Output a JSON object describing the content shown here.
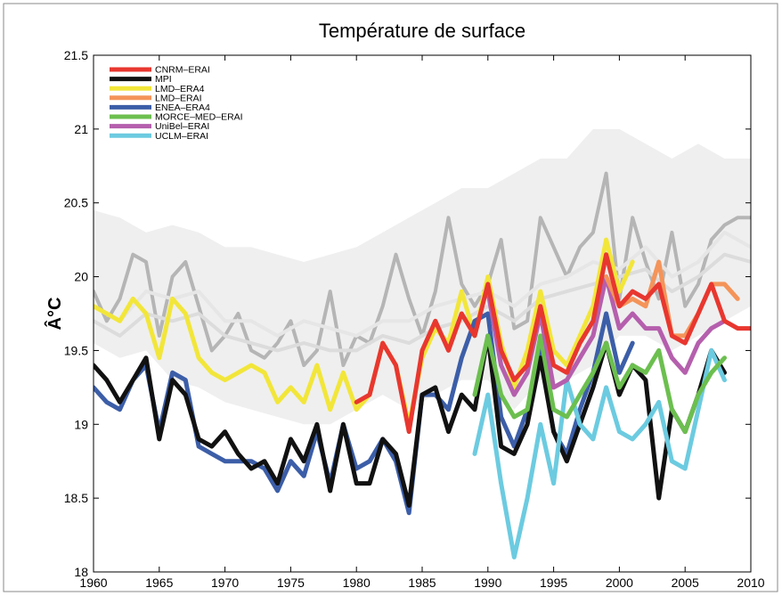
{
  "chart_data": {
    "type": "line",
    "title": "Température de surface",
    "xlabel": "",
    "ylabel": "Â°C",
    "xlim": [
      1960,
      2010
    ],
    "ylim": [
      18,
      21.5
    ],
    "xticks": [
      "1960",
      "1965",
      "1970",
      "1975",
      "1980",
      "1985",
      "1990",
      "1995",
      "2000",
      "2005",
      "2010"
    ],
    "yticks": [
      "18",
      "18.5",
      "19",
      "19.5",
      "20",
      "20.5",
      "21",
      "21.5"
    ],
    "grid": false,
    "legend": "top-left",
    "envelope": {
      "x": [
        1960,
        1962,
        1964,
        1966,
        1968,
        1970,
        1972,
        1974,
        1976,
        1978,
        1980,
        1982,
        1984,
        1986,
        1988,
        1990,
        1992,
        1994,
        1996,
        1998,
        2000,
        2002,
        2004,
        2006,
        2008,
        2010
      ],
      "low": [
        19.55,
        19.45,
        19.5,
        19.3,
        19.25,
        19.15,
        19.1,
        19.05,
        19.0,
        19.0,
        19.1,
        19.2,
        19.1,
        19.2,
        19.3,
        19.3,
        19.1,
        19.3,
        19.3,
        19.4,
        19.6,
        19.6,
        19.5,
        19.6,
        19.7,
        19.8
      ],
      "high": [
        20.45,
        20.4,
        20.3,
        20.35,
        20.3,
        20.2,
        20.2,
        20.15,
        20.1,
        20.15,
        20.2,
        20.3,
        20.4,
        20.5,
        20.6,
        20.6,
        20.7,
        20.8,
        20.8,
        21.0,
        21.0,
        20.9,
        20.8,
        20.9,
        20.8,
        20.8
      ]
    },
    "grey_series": [
      {
        "color": "#b5b5b5",
        "x": [
          1960,
          1961,
          1962,
          1963,
          1964,
          1965,
          1966,
          1967,
          1968,
          1969,
          1970,
          1971,
          1972,
          1973,
          1974,
          1975,
          1976,
          1977,
          1978,
          1979,
          1980,
          1981,
          1982,
          1983,
          1984,
          1985,
          1986,
          1987,
          1988,
          1989,
          1990,
          1991,
          1992,
          1993,
          1994,
          1995,
          1996,
          1997,
          1998,
          1999,
          2000,
          2001,
          2002,
          2003,
          2004,
          2005,
          2006,
          2007,
          2008,
          2009,
          2010
        ],
        "values": [
          19.9,
          19.7,
          19.85,
          20.15,
          20.1,
          19.6,
          20.0,
          20.1,
          19.8,
          19.5,
          19.6,
          19.75,
          19.5,
          19.45,
          19.55,
          19.7,
          19.4,
          19.5,
          19.9,
          19.4,
          19.6,
          19.55,
          19.8,
          20.15,
          19.85,
          19.6,
          19.9,
          20.4,
          19.95,
          19.8,
          19.95,
          20.25,
          19.65,
          19.7,
          20.4,
          20.2,
          20.0,
          20.2,
          20.3,
          20.7,
          19.85,
          20.4,
          20.1,
          19.85,
          20.3,
          19.8,
          19.95,
          20.25,
          20.35,
          20.4,
          20.4
        ]
      },
      {
        "color": "#e6e6e6",
        "x": [
          1960,
          1962,
          1964,
          1966,
          1968,
          1970,
          1972,
          1974,
          1976,
          1978,
          1980,
          1982,
          1984,
          1986,
          1988,
          1990,
          1992,
          1994,
          1996,
          1998,
          2000,
          2002,
          2004,
          2006,
          2008,
          2010
        ],
        "values": [
          19.8,
          19.7,
          19.9,
          19.85,
          19.9,
          19.7,
          19.7,
          19.6,
          19.7,
          19.65,
          19.6,
          19.7,
          19.7,
          19.8,
          19.85,
          19.9,
          19.8,
          19.95,
          20.0,
          20.1,
          20.05,
          20.2,
          20.0,
          20.1,
          20.3,
          20.2
        ]
      },
      {
        "color": "#dcdcdc",
        "x": [
          1960,
          1962,
          1964,
          1966,
          1968,
          1970,
          1972,
          1974,
          1976,
          1978,
          1980,
          1982,
          1984,
          1986,
          1988,
          1990,
          1992,
          1994,
          1996,
          1998,
          2000,
          2002,
          2004,
          2006,
          2008,
          2010
        ],
        "values": [
          19.7,
          19.6,
          19.75,
          19.7,
          19.75,
          19.6,
          19.55,
          19.5,
          19.55,
          19.5,
          19.5,
          19.6,
          19.55,
          19.65,
          19.7,
          19.8,
          19.7,
          19.85,
          19.9,
          19.95,
          20.0,
          20.05,
          19.9,
          20.0,
          20.15,
          20.1
        ]
      }
    ],
    "series": [
      {
        "name": "CNRM–ERAI",
        "color": "#e8372f",
        "x": [
          1980,
          1981,
          1982,
          1983,
          1984,
          1985,
          1986,
          1987,
          1988,
          1989,
          1990,
          1991,
          1992,
          1993,
          1994,
          1995,
          1996,
          1997,
          1998,
          1999,
          2000,
          2001,
          2002,
          2003,
          2004,
          2005,
          2006,
          2007,
          2008,
          2009,
          2010
        ],
        "values": [
          19.15,
          19.2,
          19.55,
          19.4,
          18.95,
          19.5,
          19.7,
          19.5,
          19.75,
          19.6,
          19.95,
          19.5,
          19.3,
          19.4,
          19.8,
          19.4,
          19.35,
          19.55,
          19.7,
          20.15,
          19.8,
          19.9,
          19.85,
          19.95,
          19.6,
          19.55,
          19.75,
          19.95,
          19.7,
          19.65,
          19.65
        ]
      },
      {
        "name": "MPI",
        "color": "#111111",
        "x": [
          1960,
          1961,
          1962,
          1963,
          1964,
          1965,
          1966,
          1967,
          1968,
          1969,
          1970,
          1971,
          1972,
          1973,
          1974,
          1975,
          1976,
          1977,
          1978,
          1979,
          1980,
          1981,
          1982,
          1983,
          1984,
          1985,
          1986,
          1987,
          1988,
          1989,
          1990,
          1991,
          1992,
          1993,
          1994,
          1995,
          1996,
          1997,
          1998,
          1999,
          2000,
          2001,
          2002,
          2003,
          2004,
          2005,
          2006,
          2007,
          2008
        ],
        "values": [
          19.4,
          19.3,
          19.15,
          19.3,
          19.45,
          18.9,
          19.3,
          19.2,
          18.9,
          18.85,
          18.95,
          18.8,
          18.7,
          18.75,
          18.6,
          18.9,
          18.75,
          19.0,
          18.55,
          19.0,
          18.6,
          18.6,
          18.9,
          18.8,
          18.45,
          19.2,
          19.25,
          18.95,
          19.2,
          19.1,
          19.6,
          18.85,
          18.8,
          19.0,
          19.45,
          18.95,
          18.75,
          19.0,
          19.25,
          19.55,
          19.2,
          19.4,
          19.3,
          18.5,
          19.1,
          18.95,
          19.2,
          19.5,
          19.35
        ]
      },
      {
        "name": "LMD–ERA4",
        "color": "#f2e63a",
        "x": [
          1960,
          1961,
          1962,
          1963,
          1964,
          1965,
          1966,
          1967,
          1968,
          1969,
          1970,
          1971,
          1972,
          1973,
          1974,
          1975,
          1976,
          1977,
          1978,
          1979,
          1980,
          1981,
          1982,
          1983,
          1984,
          1985,
          1986,
          1987,
          1988,
          1989,
          1990,
          1991,
          1992,
          1993,
          1994,
          1995,
          1996,
          1997,
          1998,
          1999,
          2000,
          2001
        ],
        "values": [
          19.8,
          19.75,
          19.7,
          19.85,
          19.75,
          19.45,
          19.85,
          19.75,
          19.45,
          19.35,
          19.3,
          19.35,
          19.4,
          19.35,
          19.15,
          19.25,
          19.15,
          19.4,
          19.1,
          19.35,
          19.1,
          19.2,
          19.55,
          19.4,
          19.0,
          19.45,
          19.65,
          19.55,
          19.9,
          19.6,
          20.0,
          19.55,
          19.25,
          19.5,
          19.9,
          19.5,
          19.4,
          19.6,
          19.8,
          20.25,
          19.9,
          20.1
        ]
      },
      {
        "name": "LMD–ERAI",
        "color": "#f4945a",
        "x": [
          1999,
          2000,
          2001,
          2002,
          2003,
          2004,
          2005,
          2006,
          2007,
          2008,
          2009
        ],
        "values": [
          20.0,
          19.8,
          19.85,
          19.8,
          20.1,
          19.6,
          19.6,
          19.75,
          19.95,
          19.95,
          19.85
        ]
      },
      {
        "name": "ENEA–ERA4",
        "color": "#3c5ea8",
        "x": [
          1960,
          1961,
          1962,
          1963,
          1964,
          1965,
          1966,
          1967,
          1968,
          1969,
          1970,
          1971,
          1972,
          1973,
          1974,
          1975,
          1976,
          1977,
          1978,
          1979,
          1980,
          1981,
          1982,
          1983,
          1984,
          1985,
          1986,
          1987,
          1988,
          1989,
          1990,
          1991,
          1992,
          1993,
          1994,
          1995,
          1996,
          1997,
          1998,
          1999,
          2000,
          2001
        ],
        "values": [
          19.25,
          19.15,
          19.1,
          19.3,
          19.4,
          18.95,
          19.35,
          19.3,
          18.85,
          18.8,
          18.75,
          18.75,
          18.75,
          18.7,
          18.55,
          18.75,
          18.65,
          18.95,
          18.6,
          19.0,
          18.7,
          18.75,
          18.9,
          18.75,
          18.4,
          19.2,
          19.2,
          19.1,
          19.45,
          19.7,
          19.75,
          19.05,
          18.85,
          19.1,
          19.5,
          18.95,
          18.8,
          19.1,
          19.35,
          19.75,
          19.35,
          19.55
        ]
      },
      {
        "name": "MORCE–MED–ERAI",
        "color": "#6cbf4f",
        "x": [
          1989,
          1990,
          1991,
          1992,
          1993,
          1994,
          1995,
          1996,
          1997,
          1998,
          1999,
          2000,
          2001,
          2002,
          2003,
          2004,
          2005,
          2006,
          2007,
          2008
        ],
        "values": [
          19.2,
          19.6,
          19.2,
          19.05,
          19.1,
          19.6,
          19.1,
          19.05,
          19.2,
          19.35,
          19.55,
          19.25,
          19.4,
          19.35,
          19.5,
          19.1,
          18.95,
          19.2,
          19.35,
          19.45
        ]
      },
      {
        "name": "UniBel–ERAI",
        "color": "#b55fad",
        "x": [
          1990,
          1991,
          1992,
          1993,
          1994,
          1995,
          1996,
          1997,
          1998,
          1999,
          2000,
          2001,
          2002,
          2003,
          2004,
          2005,
          2006,
          2007,
          2008
        ],
        "values": [
          19.9,
          19.4,
          19.2,
          19.35,
          19.75,
          19.25,
          19.3,
          19.45,
          19.6,
          20.0,
          19.65,
          19.75,
          19.65,
          19.65,
          19.45,
          19.35,
          19.55,
          19.65,
          19.7
        ]
      },
      {
        "name": "UCLM–ERAI",
        "color": "#6ccbe0",
        "x": [
          1989,
          1990,
          1991,
          1992,
          1993,
          1994,
          1995,
          1996,
          1997,
          1998,
          1999,
          2000,
          2001,
          2002,
          2003,
          2004,
          2005,
          2006,
          2007,
          2008
        ],
        "values": [
          18.8,
          19.2,
          18.6,
          18.1,
          18.5,
          19.0,
          18.6,
          19.3,
          19.0,
          18.9,
          19.25,
          18.95,
          18.9,
          19.0,
          19.15,
          18.75,
          18.7,
          19.1,
          19.5,
          19.3
        ]
      }
    ]
  }
}
